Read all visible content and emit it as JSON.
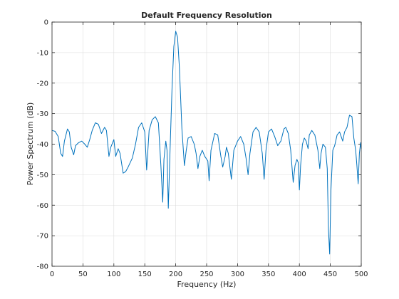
{
  "chart_data": {
    "type": "line",
    "title": "Default Frequency Resolution",
    "xlabel": "Frequency (Hz)",
    "ylabel": "Power Spectrum (dB)",
    "xlim": [
      0,
      500
    ],
    "ylim": [
      -80,
      0
    ],
    "xticks": [
      0,
      50,
      100,
      150,
      200,
      250,
      300,
      350,
      400,
      450,
      500
    ],
    "yticks": [
      0,
      -10,
      -20,
      -30,
      -40,
      -50,
      -60,
      -70,
      -80
    ],
    "grid": true,
    "line_color": "#0072BD",
    "series": [
      {
        "points": [
          [
            0,
            -35.5
          ],
          [
            5,
            -35.8
          ],
          [
            10,
            -37.5
          ],
          [
            14,
            -43
          ],
          [
            17,
            -44
          ],
          [
            20,
            -39
          ],
          [
            25,
            -35
          ],
          [
            28,
            -36
          ],
          [
            31,
            -41
          ],
          [
            35,
            -43.5
          ],
          [
            38,
            -40.5
          ],
          [
            43,
            -39.5
          ],
          [
            48,
            -39
          ],
          [
            53,
            -40
          ],
          [
            57,
            -41
          ],
          [
            61,
            -38.5
          ],
          [
            65,
            -35.5
          ],
          [
            70,
            -33
          ],
          [
            75,
            -33.5
          ],
          [
            80,
            -36.5
          ],
          [
            85,
            -34.5
          ],
          [
            88,
            -35.5
          ],
          [
            92,
            -44
          ],
          [
            95,
            -41
          ],
          [
            100,
            -38.5
          ],
          [
            103,
            -44
          ],
          [
            107,
            -41.5
          ],
          [
            110,
            -43
          ],
          [
            115,
            -49.5
          ],
          [
            119,
            -49
          ],
          [
            123,
            -47.5
          ],
          [
            130,
            -44.5
          ],
          [
            135,
            -40
          ],
          [
            140,
            -34.5
          ],
          [
            145,
            -33
          ],
          [
            150,
            -36
          ],
          [
            153,
            -48.5
          ],
          [
            157,
            -35.5
          ],
          [
            162,
            -32
          ],
          [
            167,
            -31
          ],
          [
            172,
            -33
          ],
          [
            176,
            -47
          ],
          [
            179,
            -59
          ],
          [
            181,
            -45
          ],
          [
            184,
            -39
          ],
          [
            186,
            -42
          ],
          [
            188,
            -61
          ],
          [
            191,
            -41
          ],
          [
            194,
            -22
          ],
          [
            197,
            -8
          ],
          [
            200,
            -3
          ],
          [
            203,
            -5
          ],
          [
            206,
            -15
          ],
          [
            210,
            -35
          ],
          [
            214,
            -47
          ],
          [
            217,
            -42
          ],
          [
            220,
            -38
          ],
          [
            225,
            -37.5
          ],
          [
            230,
            -40
          ],
          [
            233,
            -43
          ],
          [
            236,
            -48
          ],
          [
            239,
            -44
          ],
          [
            243,
            -42
          ],
          [
            247,
            -44
          ],
          [
            252,
            -45.5
          ],
          [
            254,
            -52
          ],
          [
            257,
            -42
          ],
          [
            263,
            -36.5
          ],
          [
            268,
            -37
          ],
          [
            273,
            -44
          ],
          [
            276,
            -47.5
          ],
          [
            280,
            -44
          ],
          [
            282,
            -41
          ],
          [
            285,
            -43
          ],
          [
            290,
            -51.5
          ],
          [
            294,
            -42
          ],
          [
            300,
            -39
          ],
          [
            305,
            -37.5
          ],
          [
            310,
            -40
          ],
          [
            314,
            -45
          ],
          [
            317,
            -50
          ],
          [
            320,
            -43
          ],
          [
            325,
            -36
          ],
          [
            330,
            -34.5
          ],
          [
            335,
            -36
          ],
          [
            340,
            -43
          ],
          [
            343,
            -51.5
          ],
          [
            346,
            -42
          ],
          [
            350,
            -36
          ],
          [
            355,
            -35
          ],
          [
            360,
            -37.5
          ],
          [
            365,
            -40.5
          ],
          [
            370,
            -39
          ],
          [
            375,
            -35
          ],
          [
            378,
            -34.5
          ],
          [
            382,
            -36.5
          ],
          [
            386,
            -42
          ],
          [
            390,
            -52.5
          ],
          [
            393,
            -47
          ],
          [
            396,
            -45
          ],
          [
            398,
            -46
          ],
          [
            400,
            -55
          ],
          [
            402,
            -47
          ],
          [
            405,
            -40
          ],
          [
            408,
            -38
          ],
          [
            411,
            -39
          ],
          [
            414,
            -41.5
          ],
          [
            416,
            -37
          ],
          [
            420,
            -35.5
          ],
          [
            425,
            -37
          ],
          [
            430,
            -42
          ],
          [
            433,
            -48
          ],
          [
            435,
            -43
          ],
          [
            438,
            -40
          ],
          [
            442,
            -41
          ],
          [
            445,
            -48
          ],
          [
            447,
            -68
          ],
          [
            449,
            -76
          ],
          [
            451,
            -55
          ],
          [
            454,
            -42
          ],
          [
            457,
            -40.5
          ],
          [
            461,
            -37
          ],
          [
            465,
            -36
          ],
          [
            470,
            -39
          ],
          [
            473,
            -36
          ],
          [
            477,
            -34.5
          ],
          [
            481,
            -30.5
          ],
          [
            485,
            -31
          ],
          [
            488,
            -38
          ],
          [
            491,
            -42
          ],
          [
            493,
            -47
          ],
          [
            495,
            -53
          ],
          [
            497,
            -43
          ],
          [
            499,
            -39.5
          ],
          [
            500,
            -41.5
          ]
        ]
      }
    ]
  }
}
